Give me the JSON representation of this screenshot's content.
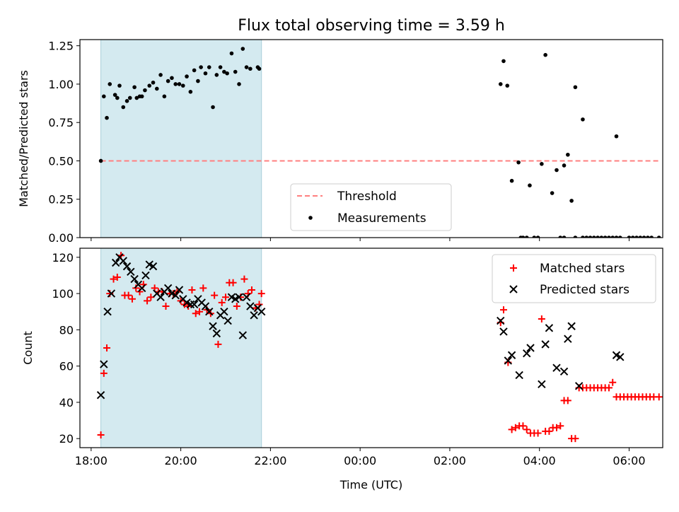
{
  "title": "Flux total observing time = 3.59 h",
  "colors": {
    "threshold": "#ff7f7f",
    "measurement": "#000000",
    "matched": "#ff0000",
    "predicted": "#000000",
    "shade": "#d4eaf0"
  },
  "chart_data": [
    {
      "type": "scatter",
      "title": "Flux total observing time = 3.59 h",
      "xlabel": "",
      "ylabel": "Matched/Predicted stars",
      "xlim": [
        "17:45",
        "06:45"
      ],
      "ylim": [
        0,
        1.29
      ],
      "yticks": [
        "0.00",
        "0.25",
        "0.50",
        "0.75",
        "1.00",
        "1.25"
      ],
      "shaded_span": [
        "18:13",
        "21:48"
      ],
      "threshold": 0.5,
      "legend": {
        "entries": [
          "Threshold",
          "Measurements"
        ],
        "placement": "lower-center"
      },
      "series": [
        {
          "name": "Measurements",
          "x": [
            "18:13",
            "18:17",
            "18:21",
            "18:25",
            "18:32",
            "18:35",
            "18:38",
            "18:43",
            "18:48",
            "18:52",
            "18:58",
            "19:01",
            "19:05",
            "19:08",
            "19:12",
            "19:18",
            "19:23",
            "19:28",
            "19:33",
            "19:38",
            "19:43",
            "19:48",
            "19:53",
            "19:58",
            "20:03",
            "20:08",
            "20:13",
            "20:18",
            "20:23",
            "20:27",
            "20:33",
            "20:38",
            "20:43",
            "20:48",
            "20:53",
            "20:58",
            "21:02",
            "21:08",
            "21:13",
            "21:18",
            "21:23",
            "21:28",
            "21:33",
            "21:43",
            "21:45",
            "03:08",
            "03:12",
            "03:17",
            "03:23",
            "03:32",
            "03:47",
            "04:03",
            "04:08",
            "04:17",
            "04:23",
            "04:33",
            "04:38",
            "04:43",
            "04:48",
            "04:58",
            "05:43",
            "05:48",
            "03:35",
            "03:38",
            "03:43",
            "03:53",
            "03:58",
            "04:28",
            "04:33",
            "04:48",
            "04:58",
            "05:03",
            "05:08",
            "05:13",
            "05:18",
            "05:23",
            "05:28",
            "05:33",
            "05:38",
            "05:43",
            "06:00",
            "06:05",
            "06:10",
            "06:15",
            "06:20",
            "06:25",
            "06:30",
            "06:40"
          ],
          "y": [
            0.5,
            0.92,
            0.78,
            1.0,
            0.93,
            0.91,
            0.99,
            0.85,
            0.89,
            0.91,
            0.98,
            0.91,
            0.92,
            0.92,
            0.96,
            0.99,
            1.01,
            0.97,
            1.06,
            0.92,
            1.02,
            1.04,
            1.0,
            1.0,
            0.99,
            1.05,
            0.95,
            1.09,
            1.02,
            1.11,
            1.07,
            1.11,
            0.85,
            1.06,
            1.11,
            1.08,
            1.07,
            1.2,
            1.08,
            1.0,
            1.23,
            1.11,
            1.1,
            1.11,
            1.1,
            1.0,
            1.15,
            0.99,
            0.37,
            0.49,
            0.34,
            0.48,
            1.19,
            0.29,
            0.44,
            0.47,
            0.54,
            0.24,
            0.98,
            0.77,
            0.66,
            0.0,
            0.0,
            0.0,
            0.0,
            0.0,
            0.0,
            0.0,
            0.0,
            0.0,
            0.0,
            0.0,
            0.0,
            0.0,
            0.0,
            0.0,
            0.0,
            0.0,
            0.0,
            0.0,
            0.0,
            0.0,
            0.0,
            0.0,
            0.0,
            0.0,
            0.0,
            0.0
          ]
        }
      ]
    },
    {
      "type": "scatter",
      "xlabel": "Time (UTC)",
      "ylabel": "Count",
      "xlim": [
        "17:45",
        "06:45"
      ],
      "ylim": [
        15,
        125
      ],
      "yticks": [
        "20",
        "40",
        "60",
        "80",
        "100",
        "120"
      ],
      "xticks": [
        "18:00",
        "20:00",
        "22:00",
        "00:00",
        "02:00",
        "04:00",
        "06:00"
      ],
      "shaded_span": [
        "18:13",
        "21:48"
      ],
      "legend": {
        "entries": [
          "Matched stars",
          "Predicted stars"
        ],
        "placement": "upper-right"
      },
      "series": [
        {
          "name": "Matched stars",
          "x": [
            "18:13",
            "18:17",
            "18:21",
            "18:25",
            "18:30",
            "18:35",
            "18:40",
            "18:45",
            "18:50",
            "18:55",
            "19:00",
            "19:05",
            "19:10",
            "19:15",
            "19:20",
            "19:25",
            "19:30",
            "19:35",
            "19:40",
            "19:45",
            "19:50",
            "19:55",
            "20:00",
            "20:05",
            "20:10",
            "20:15",
            "20:20",
            "20:25",
            "20:30",
            "20:35",
            "20:40",
            "20:45",
            "20:50",
            "20:55",
            "21:00",
            "21:05",
            "21:10",
            "21:15",
            "21:20",
            "21:25",
            "21:30",
            "21:35",
            "21:40",
            "21:45",
            "21:48",
            "03:08",
            "03:12",
            "03:18",
            "03:23",
            "03:28",
            "03:33",
            "03:38",
            "03:43",
            "03:48",
            "03:53",
            "03:58",
            "04:03",
            "04:08",
            "04:13",
            "04:18",
            "04:23",
            "04:28",
            "04:33",
            "04:38",
            "04:43",
            "04:48",
            "04:53",
            "04:58",
            "05:03",
            "05:08",
            "05:13",
            "05:18",
            "05:23",
            "05:28",
            "05:33",
            "05:38",
            "05:43",
            "05:48",
            "05:53",
            "05:58",
            "06:03",
            "06:08",
            "06:13",
            "06:18",
            "06:23",
            "06:28",
            "06:33",
            "06:40"
          ],
          "y": [
            22,
            56,
            70,
            100,
            108,
            109,
            121,
            99,
            99,
            97,
            103,
            101,
            105,
            96,
            98,
            103,
            101,
            101,
            93,
            100,
            100,
            101,
            96,
            94,
            93,
            102,
            89,
            90,
            103,
            91,
            89,
            99,
            72,
            95,
            98,
            106,
            106,
            93,
            98,
            108,
            100,
            102,
            92,
            94,
            100,
            84,
            91,
            62,
            25,
            26,
            27,
            27,
            25,
            23,
            23,
            23,
            86,
            24,
            24,
            26,
            26,
            27,
            41,
            41,
            20,
            20,
            48,
            48,
            48,
            48,
            48,
            48,
            48,
            48,
            48,
            51,
            43,
            43,
            43,
            43,
            43,
            43,
            43,
            43,
            43,
            43,
            43,
            43
          ]
        },
        {
          "name": "Predicted stars",
          "x": [
            "18:13",
            "18:17",
            "18:22",
            "18:27",
            "18:33",
            "18:38",
            "18:43",
            "18:48",
            "18:53",
            "18:58",
            "19:03",
            "19:08",
            "19:13",
            "19:18",
            "19:23",
            "19:28",
            "19:33",
            "19:38",
            "19:43",
            "19:48",
            "19:53",
            "19:58",
            "20:03",
            "20:08",
            "20:13",
            "20:18",
            "20:23",
            "20:28",
            "20:33",
            "20:38",
            "20:43",
            "20:48",
            "20:53",
            "20:58",
            "21:03",
            "21:08",
            "21:13",
            "21:18",
            "21:23",
            "21:28",
            "21:33",
            "21:38",
            "21:43",
            "21:48",
            "03:08",
            "03:12",
            "03:18",
            "03:23",
            "03:33",
            "03:43",
            "03:48",
            "04:03",
            "04:08",
            "04:13",
            "04:23",
            "04:33",
            "04:38",
            "04:43",
            "04:53",
            "05:43",
            "05:48"
          ],
          "y": [
            44,
            61,
            90,
            100,
            117,
            120,
            118,
            115,
            112,
            108,
            105,
            103,
            110,
            116,
            115,
            100,
            98,
            101,
            103,
            100,
            99,
            102,
            97,
            95,
            94,
            94,
            97,
            95,
            93,
            90,
            82,
            78,
            88,
            90,
            85,
            98,
            97,
            98,
            77,
            98,
            93,
            88,
            92,
            90,
            85,
            79,
            63,
            66,
            55,
            67,
            70,
            50,
            72,
            81,
            59,
            57,
            75,
            82,
            49,
            66,
            65
          ]
        }
      ]
    }
  ]
}
